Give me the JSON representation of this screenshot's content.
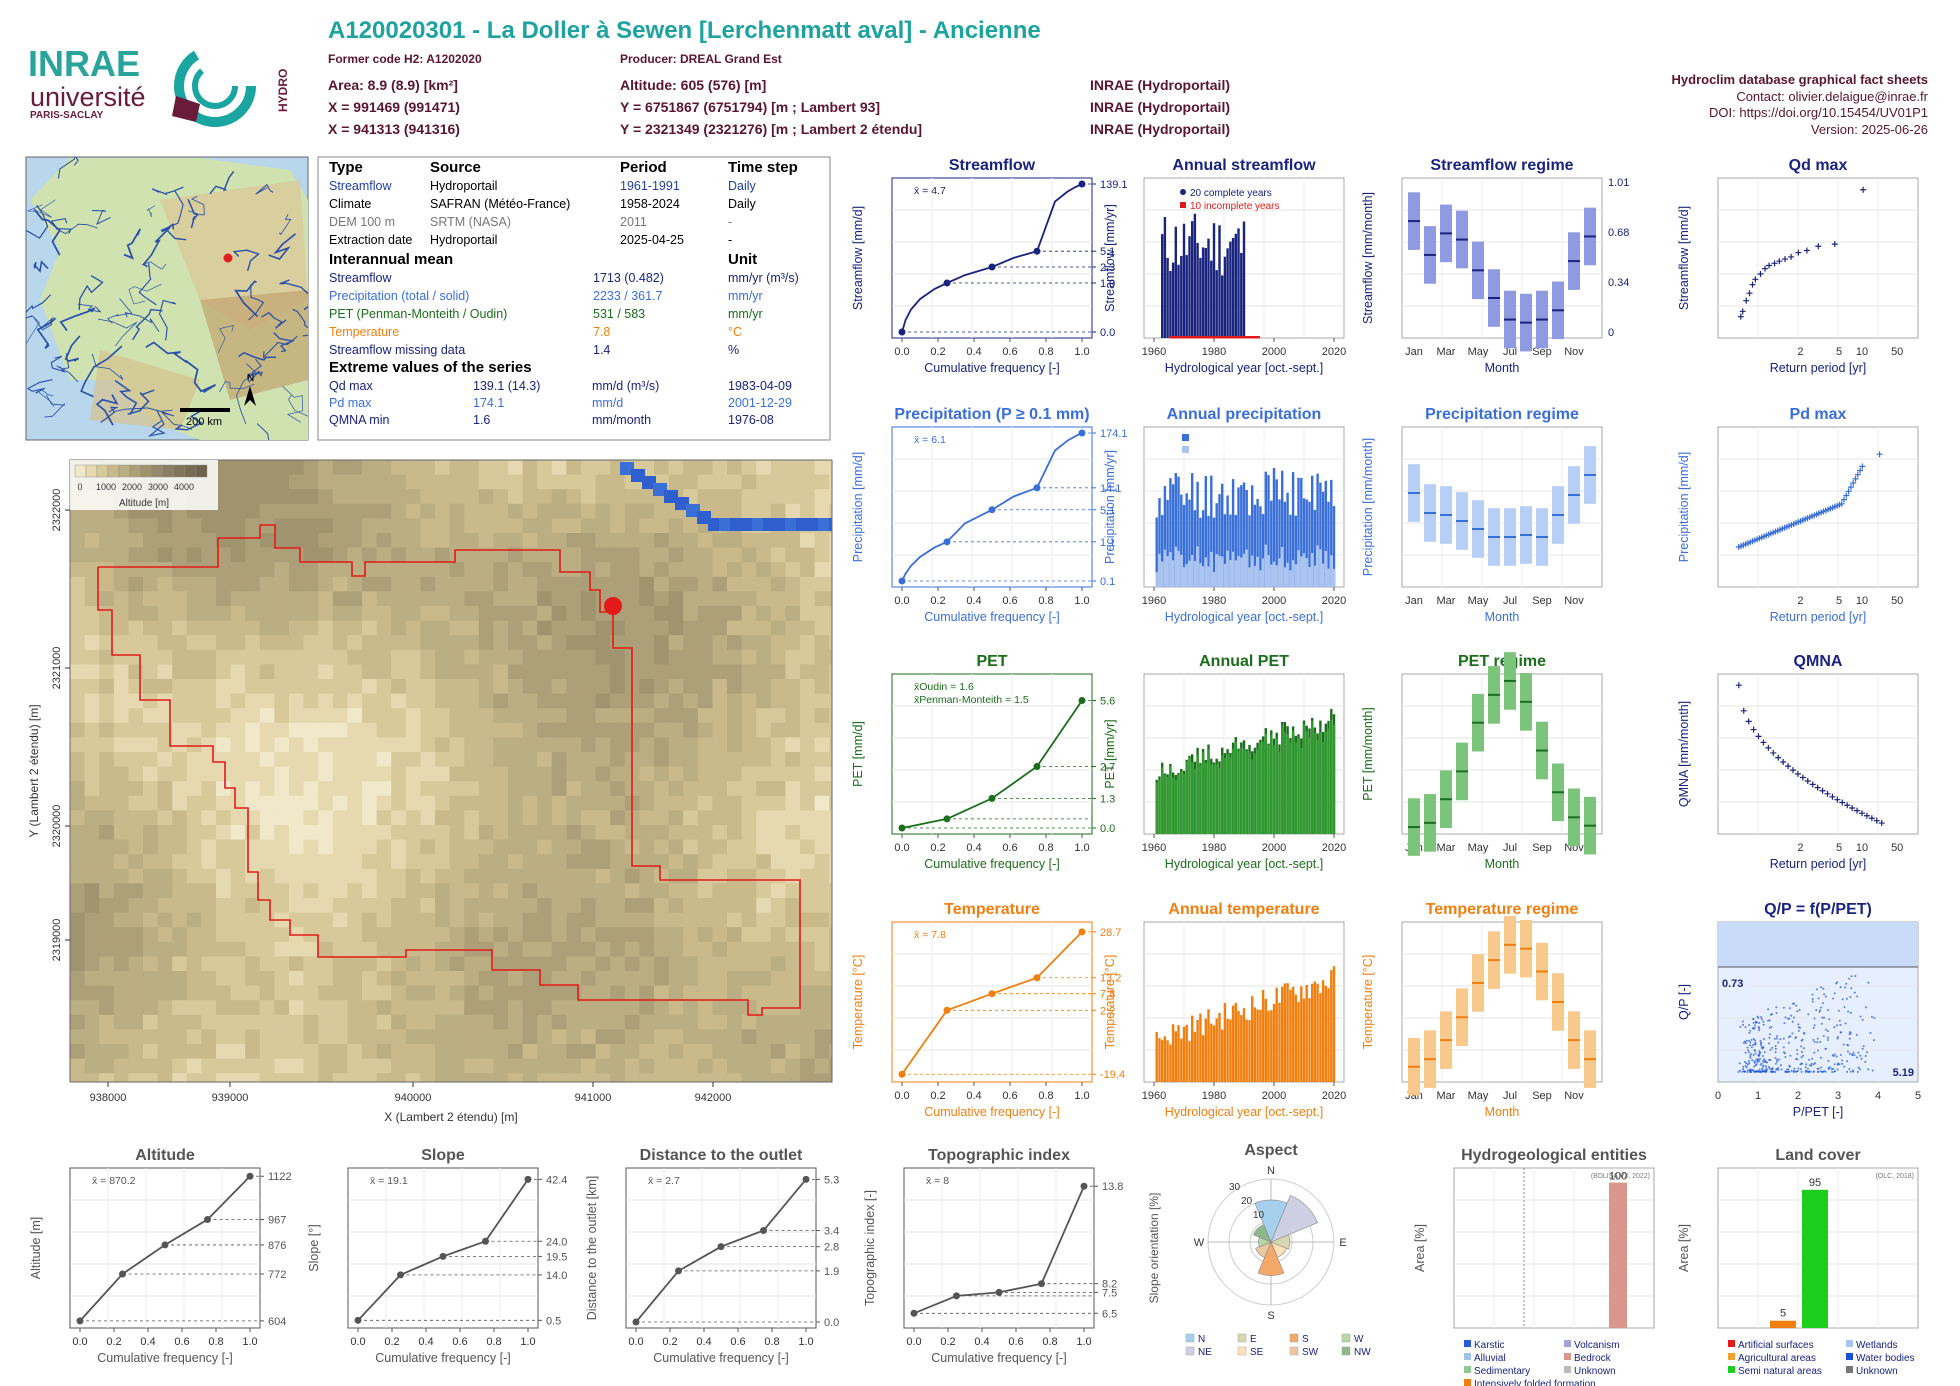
{
  "header": {
    "title": "A120020301 - La Doller à Sewen [Lerchenmatt aval] - Ancienne",
    "former_code": "Former code H2: A1202020",
    "producer": "Producer: DREAL Grand Est",
    "area": "Area: 8.9 (8.9) [km²]",
    "altitude": "Altitude: 605 (576) [m]",
    "x93": "X = 991469 (991471)",
    "y93": "Y = 6751867 (6751794) [m ; Lambert 93]",
    "x2e": "X = 941313 (941316)",
    "y2e": "Y = 2321349 (2321276) [m ; Lambert 2 étendu]",
    "src1": "INRAE (Hydroportail)",
    "src2": "INRAE (Hydroportail)",
    "src3": "INRAE (Hydroportail)",
    "db_title": "Hydroclim database graphical fact sheets",
    "contact": "Contact: olivier.delaigue@inrae.fr",
    "doi": "DOI: https://doi.org/10.15454/UV01P1",
    "version": "Version: 2025-06-26"
  },
  "logos": {
    "inrae": "INRAE",
    "universite": "université",
    "paris_saclay": "PARIS-SACLAY",
    "hydro": "HYDRO"
  },
  "map_france": {
    "scale": "200 km",
    "north": "N"
  },
  "info_table": {
    "headers": [
      "Type",
      "Source",
      "Period",
      "Time step"
    ],
    "rows": [
      [
        "Streamflow",
        "Hydroportail",
        "1961-1991",
        "Daily"
      ],
      [
        "Climate",
        "SAFRAN (Météo-France)",
        "1958-2024",
        "Daily"
      ],
      [
        "DEM 100 m",
        "SRTM (NASA)",
        "2011",
        "-"
      ],
      [
        "Extraction date",
        "Hydroportail",
        "2025-04-25",
        "-"
      ]
    ],
    "interannual_title": "Interannual mean",
    "unit_title": "Unit",
    "interannual": [
      [
        "Streamflow",
        "1713 (0.482)",
        "mm/yr (m³/s)"
      ],
      [
        "Precipitation (total / solid)",
        "2233 / 361.7",
        "mm/yr"
      ],
      [
        "PET (Penman-Monteith / Oudin)",
        "531 / 583",
        "mm/yr"
      ],
      [
        "Temperature",
        "7.8",
        "°C"
      ],
      [
        "Streamflow missing data",
        "1.4",
        "%"
      ]
    ],
    "extreme_title": "Extreme values of the series",
    "extremes": [
      [
        "Qd max",
        "139.1 (14.3)",
        "mm/d (m³/s)",
        "1983-04-09"
      ],
      [
        "Pd max",
        "174.1",
        "mm/d",
        "2001-12-29"
      ],
      [
        "QMNA min",
        "1.6",
        "mm/month",
        "1976-08"
      ]
    ]
  },
  "dem": {
    "legend_ticks": [
      "0",
      "1000",
      "2000",
      "3000",
      "4000"
    ],
    "legend_title": "Altitude [m]",
    "xticks": [
      "938000",
      "939000",
      "940000",
      "941000",
      "942000"
    ],
    "yticks": [
      "2322000",
      "2321000",
      "2320000",
      "2319000"
    ],
    "xlabel": "X (Lambert 2 étendu) [m]",
    "ylabel": "Y (Lambert 2 étendu) [m]"
  },
  "colors": {
    "streamflow": "#1a237e",
    "precip": "#3a6fd8",
    "pet": "#1b6e1b",
    "temp": "#f07f10",
    "grey": "#555555"
  },
  "panels": {
    "streamflow_cdf": {
      "title": "Streamflow",
      "mean": "x̄ = 4.7",
      "ylabel": "Streamflow [mm/d]",
      "xlabel": "Cumulative frequency [-]",
      "right": [
        "139.1",
        "5.1",
        "2.3",
        "1.0",
        "0.0"
      ]
    },
    "annual_streamflow": {
      "title": "Annual streamflow",
      "ylabel": "Streamflow [mm/yr]",
      "xlabel": "Hydrological year [oct.-sept.]",
      "legend1": "20 complete years",
      "legend2": "10 incomplete years"
    },
    "streamflow_regime": {
      "title": "Streamflow regime",
      "ylabel": "Streamflow [mm/month]",
      "xlabel": "Month",
      "right": [
        "1.01",
        "0.68",
        "0.34",
        "0"
      ]
    },
    "qd_max": {
      "title": "Qd max",
      "ylabel": "Streamflow [mm/d]",
      "xlabel": "Return period [yr]"
    },
    "precip_cdf": {
      "title": "Precipitation (P ≥ 0.1 mm)",
      "mean": "x̄ = 6.1",
      "ylabel": "Precipitation [mm/d]",
      "xlabel": "Cumulative frequency [-]",
      "right": [
        "174.1",
        "14.1",
        "5.1",
        "1.1",
        "0.1"
      ]
    },
    "annual_precip": {
      "title": "Annual precipitation",
      "ylabel": "Precipitation [mm/yr]",
      "xlabel": "Hydrological year [oct.-sept.]",
      "legend1": "Total precipitation",
      "legend2": "Solid precipitation"
    },
    "precip_regime": {
      "title": "Precipitation regime",
      "ylabel": "Precipitation [mm/month]",
      "xlabel": "Month"
    },
    "pd_max": {
      "title": "Pd max",
      "ylabel": "Precipitation [mm/d]",
      "xlabel": "Return period [yr]"
    },
    "pet_cdf": {
      "title": "PET",
      "mean1": "x̄Oudin = 1.6",
      "mean2": "x̄Penman-Monteith = 1.5",
      "ylabel": "PET [mm/d]",
      "xlabel": "Cumulative frequency [-]",
      "right": [
        "5.6",
        "2.7",
        "1.3",
        "0.0"
      ]
    },
    "annual_pet": {
      "title": "Annual PET",
      "ylabel": "PET [mm/yr]",
      "xlabel": "Hydrological year [oct.-sept.]"
    },
    "pet_regime": {
      "title": "PET regime",
      "ylabel": "PET [mm/month]",
      "xlabel": "Month"
    },
    "qmna": {
      "title": "QMNA",
      "ylabel": "QMNA [mm/month]",
      "xlabel": "Return period [yr]"
    },
    "temp_cdf": {
      "title": "Temperature",
      "mean": "x̄ = 7.8",
      "ylabel": "Temperature [°C]",
      "xlabel": "Cumulative frequency [-]",
      "right": [
        "28.7",
        "13.2",
        "7.8",
        "2.2",
        "-19.4"
      ]
    },
    "annual_temp": {
      "title": "Annual temperature",
      "ylabel": "Temperature [°C]",
      "xlabel": "Hydrological year [oct.-sept.]"
    },
    "temp_regime": {
      "title": "Temperature regime",
      "ylabel": "Temperature [°C]",
      "xlabel": "Month"
    },
    "qp": {
      "title": "Q/P = f(P/PET)",
      "ylabel": "Q/P [-]",
      "xlabel": "P/PET [-]",
      "v1": "0.73",
      "v2": "5.19"
    },
    "altitude": {
      "title": "Altitude",
      "mean": "x̄ = 870.2",
      "ylabel": "Altitude [m]",
      "xlabel": "Cumulative frequency [-]",
      "right": [
        "1122",
        "967",
        "876",
        "772",
        "604"
      ]
    },
    "slope": {
      "title": "Slope",
      "mean": "x̄ = 19.1",
      "ylabel": "Slope [°]",
      "xlabel": "Cumulative frequency [-]",
      "right": [
        "42.4",
        "24.0",
        "19.5",
        "14.0",
        "0.5"
      ]
    },
    "distance": {
      "title": "Distance to the outlet",
      "mean": "x̄ = 2.7",
      "ylabel": "Distance to the outlet [km]",
      "xlabel": "Cumulative frequency [-]",
      "right": [
        "5.3",
        "3.4",
        "2.8",
        "1.9",
        "0.0"
      ]
    },
    "topo": {
      "title": "Topographic index",
      "mean": "x̄ = 8",
      "ylabel": "Topographic index [-]",
      "xlabel": "Cumulative frequency [-]",
      "right": [
        "13.8",
        "8.2",
        "7.5",
        "6.5"
      ]
    },
    "aspect": {
      "title": "Aspect",
      "ylabel": "Slope orientation [%]",
      "dirs": [
        "N",
        "E",
        "S",
        "W"
      ],
      "rings": [
        "10",
        "20",
        "30"
      ],
      "legend": [
        "N",
        "E",
        "S",
        "W",
        "NE",
        "SE",
        "SW",
        "NW"
      ]
    },
    "hydrogeo": {
      "title": "Hydrogeological entities",
      "ylabel": "Area [%]",
      "source": "(BDLISA V3, 2022)",
      "value_label": "100",
      "legend": [
        "Karstic",
        "Volcanism",
        "Alluvial",
        "Bedrock",
        "Sedimentary",
        "Unknown",
        "Intensively folded formation"
      ]
    },
    "landcover": {
      "title": "Land cover",
      "ylabel": "Area [%]",
      "source": "(OLC, 2018)",
      "labels": [
        "5",
        "95"
      ],
      "legend": [
        "Artificial surfaces",
        "Wetlands",
        "Agricultural areas",
        "Water bodies",
        "Semi natural areas",
        "Unknown"
      ]
    }
  },
  "chart_data": [
    {
      "type": "line",
      "title": "Streamflow",
      "x": [
        0,
        0.25,
        0.5,
        0.75,
        1.0
      ],
      "y": [
        0.0,
        1.0,
        2.3,
        5.1,
        139.1
      ],
      "ylabel": "Streamflow [mm/d]",
      "xlabel": "Cumulative frequency [-]"
    },
    {
      "type": "bar",
      "title": "Annual streamflow",
      "categories": [
        1961,
        1962,
        1963,
        1964,
        1965,
        1966,
        1967,
        1968,
        1969,
        1970,
        1971,
        1972,
        1973,
        1974,
        1975,
        1976,
        1977,
        1978,
        1979,
        1980,
        1981,
        1982,
        1983,
        1984,
        1985,
        1986,
        1987,
        1988,
        1989,
        1990
      ],
      "values": [
        1600,
        1750,
        1900,
        1500,
        2200,
        1800,
        1700,
        1950,
        1650,
        2300,
        1400,
        1550,
        1600,
        1850,
        1700,
        1300,
        2000,
        2100,
        1900,
        1800,
        2200,
        2400,
        2600,
        2300,
        1700,
        2000,
        1900,
        2100,
        1600,
        1800
      ],
      "ylim": [
        0,
        3000
      ]
    },
    {
      "type": "bar",
      "title": "Streamflow regime",
      "categories": [
        "Jan",
        "Feb",
        "Mar",
        "Apr",
        "May",
        "Jun",
        "Jul",
        "Aug",
        "Sep",
        "Oct",
        "Nov",
        "Dec"
      ],
      "values": [
        190,
        135,
        170,
        160,
        110,
        65,
        30,
        25,
        30,
        45,
        125,
        165
      ],
      "ylim": [
        0,
        260
      ]
    },
    {
      "type": "scatter",
      "title": "Qd max",
      "x": [
        1.05,
        1.1,
        1.2,
        1.3,
        1.4,
        1.5,
        1.7,
        1.9,
        2.1,
        2.4,
        2.7,
        3.1,
        3.6,
        4.3,
        5.3,
        7,
        10.5,
        21
      ],
      "y": [
        20,
        25,
        35,
        42,
        50,
        55,
        60,
        65,
        68,
        70,
        72,
        74,
        76,
        80,
        82,
        86,
        88,
        139
      ],
      "ylim": [
        0,
        150
      ]
    },
    {
      "type": "line",
      "title": "Precipitation (P ≥ 0.1 mm)",
      "x": [
        0,
        0.25,
        0.5,
        0.75,
        1.0
      ],
      "y": [
        0.1,
        1.1,
        5.1,
        14.1,
        174.1
      ]
    },
    {
      "type": "bar",
      "title": "Annual precipitation",
      "series": [
        {
          "name": "Total precipitation"
        },
        {
          "name": "Solid precipitation"
        }
      ],
      "ylim": [
        0,
        3200
      ]
    },
    {
      "type": "bar",
      "title": "Precipitation regime",
      "categories": [
        "Jan",
        "Feb",
        "Mar",
        "Apr",
        "May",
        "Jun",
        "Jul",
        "Aug",
        "Sep",
        "Oct",
        "Nov",
        "Dec"
      ],
      "values": [
        235,
        185,
        180,
        165,
        145,
        125,
        125,
        130,
        125,
        180,
        230,
        280
      ],
      "ylim": [
        0,
        400
      ]
    },
    {
      "type": "scatter",
      "title": "Pd max",
      "ylim": [
        0,
        200
      ]
    },
    {
      "type": "line",
      "title": "PET",
      "series": [
        {
          "name": "Oudin",
          "x": [
            0,
            0.25,
            0.5,
            0.75,
            1.0
          ],
          "y": [
            0.0,
            0.4,
            1.3,
            2.7,
            5.6
          ]
        }
      ]
    },
    {
      "type": "bar",
      "title": "Annual PET",
      "ylim": [
        350,
        850
      ]
    },
    {
      "type": "bar",
      "title": "PET regime",
      "categories": [
        "Jan",
        "Feb",
        "Mar",
        "Apr",
        "May",
        "Jun",
        "Jul",
        "Aug",
        "Sep",
        "Oct",
        "Nov",
        "Dec"
      ],
      "values": [
        5,
        8,
        25,
        45,
        80,
        100,
        110,
        95,
        60,
        30,
        12,
        6
      ],
      "ylim": [
        0,
        115
      ]
    },
    {
      "type": "scatter",
      "title": "QMNA",
      "ylim": [
        0,
        50
      ]
    },
    {
      "type": "line",
      "title": "Temperature",
      "x": [
        0,
        0.25,
        0.5,
        0.75,
        1.0
      ],
      "y": [
        -19.4,
        2.2,
        7.8,
        13.2,
        28.7
      ]
    },
    {
      "type": "bar",
      "title": "Annual temperature",
      "ylim": [
        4,
        10.5
      ]
    },
    {
      "type": "bar",
      "title": "Temperature regime",
      "categories": [
        "Jan",
        "Feb",
        "Mar",
        "Apr",
        "May",
        "Jun",
        "Jul",
        "Aug",
        "Sep",
        "Oct",
        "Nov",
        "Dec"
      ],
      "values": [
        0,
        1,
        3.5,
        6.5,
        11,
        14,
        16,
        15.5,
        12.5,
        8.5,
        3.5,
        1
      ],
      "ylim": [
        -2,
        19
      ]
    },
    {
      "type": "scatter",
      "title": "Q/P = f(P/PET)",
      "xlim": [
        0,
        5
      ],
      "ylim": [
        0,
        1.45
      ]
    },
    {
      "type": "line",
      "title": "Altitude",
      "x": [
        0,
        0.25,
        0.5,
        0.75,
        1.0
      ],
      "y": [
        604,
        772,
        876,
        967,
        1122
      ]
    },
    {
      "type": "line",
      "title": "Slope",
      "x": [
        0,
        0.25,
        0.5,
        0.75,
        1.0
      ],
      "y": [
        0.5,
        14.0,
        19.5,
        24.0,
        42.4
      ]
    },
    {
      "type": "line",
      "title": "Distance to the outlet",
      "x": [
        0,
        0.25,
        0.5,
        0.75,
        1.0
      ],
      "y": [
        0.0,
        1.9,
        2.8,
        3.4,
        5.3
      ]
    },
    {
      "type": "line",
      "title": "Topographic index",
      "x": [
        0,
        0.25,
        0.5,
        0.75,
        1.0
      ],
      "y": [
        6.5,
        7.5,
        7.7,
        8.2,
        13.8
      ]
    },
    {
      "type": "pie",
      "title": "Aspect",
      "categories": [
        "N",
        "NE",
        "E",
        "SE",
        "S",
        "SW",
        "W",
        "NW"
      ],
      "values": [
        20,
        24,
        9,
        8,
        16,
        8,
        6,
        9
      ]
    },
    {
      "type": "bar",
      "title": "Hydrogeological entities",
      "categories": [
        "Bedrock"
      ],
      "values": [
        100
      ],
      "ylim": [
        0,
        110
      ]
    },
    {
      "type": "bar",
      "title": "Land cover",
      "categories": [
        "Agricultural areas",
        "Semi natural areas"
      ],
      "values": [
        5,
        95
      ],
      "ylim": [
        0,
        110
      ]
    }
  ]
}
